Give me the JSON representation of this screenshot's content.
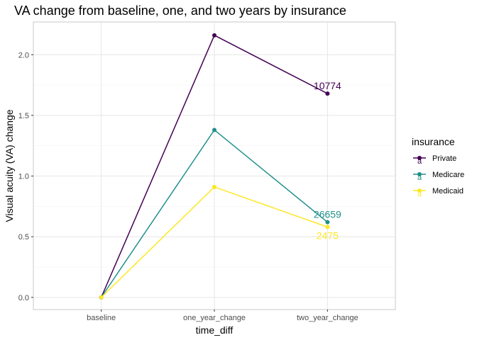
{
  "chart_data": {
    "type": "line",
    "title": "VA change from baseline, one, and two years by insurance",
    "xlabel": "time_diff",
    "ylabel": "Visual acuity (VA) change",
    "categories": [
      "baseline",
      "one_year_change",
      "two_year_change"
    ],
    "ylim": [
      -0.1,
      2.27
    ],
    "yticks": [
      0.0,
      0.5,
      1.0,
      1.5,
      2.0
    ],
    "ytick_labels": [
      "0.0",
      "0.5",
      "1.0",
      "1.5",
      "2.0"
    ],
    "grid": true,
    "legend": {
      "title": "insurance",
      "placement": "right"
    },
    "series": [
      {
        "name": "Private",
        "color": "#440154",
        "values": [
          0.0,
          2.16,
          1.68
        ],
        "label": "10774",
        "label_position": "above"
      },
      {
        "name": "Medicare",
        "color": "#21908C",
        "values": [
          0.0,
          1.38,
          0.62
        ],
        "label": "26659",
        "label_position": "above"
      },
      {
        "name": "Medicaid",
        "color": "#FDE725",
        "values": [
          0.0,
          0.91,
          0.58
        ],
        "label": "2475",
        "label_position": "below"
      }
    ]
  }
}
